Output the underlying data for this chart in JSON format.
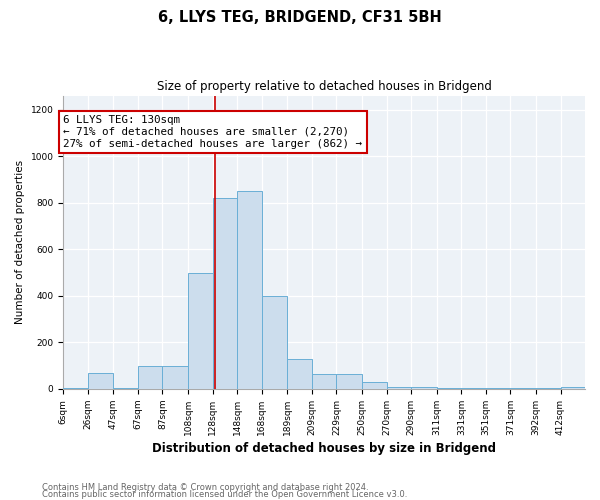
{
  "title1": "6, LLYS TEG, BRIDGEND, CF31 5BH",
  "title2": "Size of property relative to detached houses in Bridgend",
  "xlabel": "Distribution of detached houses by size in Bridgend",
  "ylabel": "Number of detached properties",
  "footnote1": "Contains HM Land Registry data © Crown copyright and database right 2024.",
  "footnote2": "Contains public sector information licensed under the Open Government Licence v3.0.",
  "annotation_line1": "6 LLYS TEG: 130sqm",
  "annotation_line2": "← 71% of detached houses are smaller (2,270)",
  "annotation_line3": "27% of semi-detached houses are larger (862) →",
  "bar_color": "#ccdded",
  "bar_edge_color": "#6aafd6",
  "redline_color": "#cc0000",
  "redline_x": 130,
  "bins": [
    6,
    26,
    47,
    67,
    87,
    108,
    128,
    148,
    168,
    189,
    209,
    229,
    250,
    270,
    290,
    311,
    331,
    351,
    371,
    392,
    412
  ],
  "values": [
    3,
    70,
    5,
    100,
    100,
    500,
    820,
    850,
    400,
    130,
    65,
    65,
    30,
    10,
    8,
    5,
    4,
    3,
    3,
    3,
    8
  ],
  "ylim": [
    0,
    1260
  ],
  "yticks": [
    0,
    200,
    400,
    600,
    800,
    1000,
    1200
  ],
  "bg_color": "#edf2f7",
  "grid_color": "#ffffff",
  "ann_fontsize": 7.8,
  "title1_fontsize": 10.5,
  "title2_fontsize": 8.5,
  "xlabel_fontsize": 8.5,
  "ylabel_fontsize": 7.5,
  "tick_fontsize": 6.5,
  "footnote_fontsize": 6.0
}
